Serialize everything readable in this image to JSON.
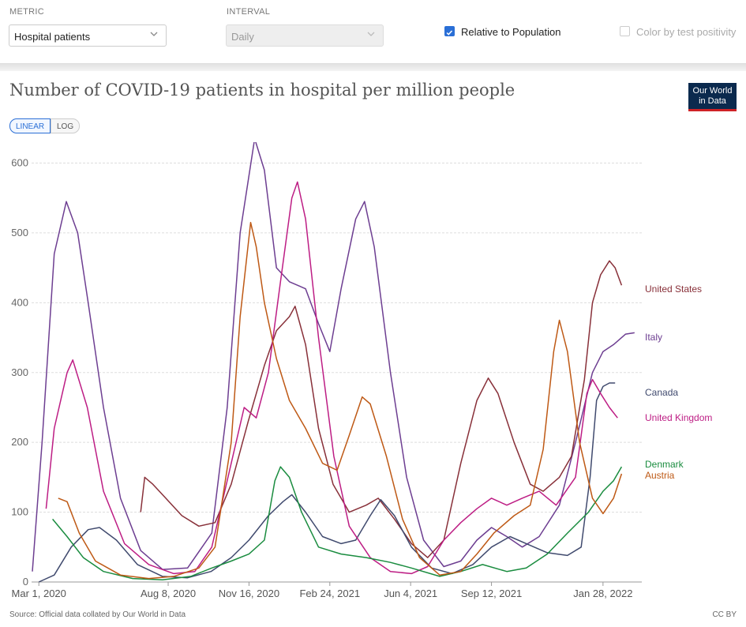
{
  "controls": {
    "metric_label": "METRIC",
    "metric_value": "Hospital patients",
    "interval_label": "INTERVAL",
    "interval_value": "Daily",
    "relative_label": "Relative to Population",
    "relative_checked": true,
    "color_label": "Color by test positivity",
    "color_checked": false
  },
  "header": {
    "title": "Number of COVID-19 patients in hospital per million people",
    "logo_line1": "Our World",
    "logo_line2": "in Data",
    "scale_linear": "LINEAR",
    "scale_log": "LOG"
  },
  "footer": {
    "source": "Source: Official data collated by Our World in Data",
    "license": "CC BY"
  },
  "chart_data": {
    "type": "line",
    "title": "Number of COVID-19 patients in hospital per million people",
    "xlabel": "",
    "ylabel": "",
    "xlim": [
      "2020-02-21",
      "2022-03-17"
    ],
    "ylim": [
      0,
      630
    ],
    "yticks": [
      0,
      100,
      200,
      300,
      400,
      500,
      600
    ],
    "xticks": [
      "2020-03-01",
      "2020-08-08",
      "2020-11-16",
      "2021-02-24",
      "2021-06-04",
      "2021-09-12",
      "2022-01-28"
    ],
    "xtick_labels": [
      "Mar 1, 2020",
      "Aug 8, 2020",
      "Nov 16, 2020",
      "Feb 24, 2021",
      "Jun 4, 2021",
      "Sep 12, 2021",
      "Jan 28, 2022"
    ],
    "grid": true,
    "legend": "end-of-line labels",
    "series": [
      {
        "name": "Italy",
        "color": "#6d3e91",
        "points": [
          [
            "2020-02-22",
            15
          ],
          [
            "2020-03-05",
            200
          ],
          [
            "2020-03-20",
            470
          ],
          [
            "2020-04-04",
            545
          ],
          [
            "2020-04-18",
            500
          ],
          [
            "2020-05-01",
            400
          ],
          [
            "2020-05-20",
            250
          ],
          [
            "2020-06-10",
            120
          ],
          [
            "2020-07-05",
            45
          ],
          [
            "2020-08-01",
            18
          ],
          [
            "2020-09-01",
            20
          ],
          [
            "2020-10-01",
            70
          ],
          [
            "2020-10-20",
            250
          ],
          [
            "2020-11-05",
            500
          ],
          [
            "2020-11-23",
            635
          ],
          [
            "2020-12-05",
            590
          ],
          [
            "2020-12-20",
            450
          ],
          [
            "2021-01-05",
            430
          ],
          [
            "2021-01-25",
            420
          ],
          [
            "2021-02-10",
            370
          ],
          [
            "2021-02-24",
            330
          ],
          [
            "2021-03-10",
            420
          ],
          [
            "2021-03-28",
            520
          ],
          [
            "2021-04-08",
            545
          ],
          [
            "2021-04-20",
            480
          ],
          [
            "2021-05-10",
            300
          ],
          [
            "2021-05-30",
            150
          ],
          [
            "2021-06-20",
            60
          ],
          [
            "2021-07-15",
            22
          ],
          [
            "2021-08-05",
            30
          ],
          [
            "2021-08-25",
            60
          ],
          [
            "2021-09-12",
            78
          ],
          [
            "2021-10-01",
            65
          ],
          [
            "2021-10-20",
            50
          ],
          [
            "2021-11-10",
            65
          ],
          [
            "2021-12-05",
            110
          ],
          [
            "2021-12-25",
            200
          ],
          [
            "2022-01-15",
            300
          ],
          [
            "2022-01-28",
            330
          ],
          [
            "2022-02-10",
            340
          ],
          [
            "2022-02-25",
            355
          ],
          [
            "2022-03-08",
            357
          ]
        ]
      },
      {
        "name": "United States",
        "color": "#883039",
        "points": [
          [
            "2020-07-05",
            100
          ],
          [
            "2020-07-10",
            150
          ],
          [
            "2020-07-20",
            140
          ],
          [
            "2020-08-05",
            120
          ],
          [
            "2020-08-25",
            95
          ],
          [
            "2020-09-15",
            80
          ],
          [
            "2020-10-05",
            85
          ],
          [
            "2020-10-25",
            140
          ],
          [
            "2020-11-15",
            230
          ],
          [
            "2020-12-05",
            310
          ],
          [
            "2020-12-20",
            360
          ],
          [
            "2021-01-05",
            380
          ],
          [
            "2021-01-12",
            395
          ],
          [
            "2021-01-25",
            340
          ],
          [
            "2021-02-10",
            220
          ],
          [
            "2021-02-28",
            140
          ],
          [
            "2021-03-20",
            100
          ],
          [
            "2021-04-10",
            110
          ],
          [
            "2021-04-25",
            120
          ],
          [
            "2021-05-15",
            90
          ],
          [
            "2021-06-05",
            55
          ],
          [
            "2021-06-25",
            35
          ],
          [
            "2021-07-15",
            60
          ],
          [
            "2021-08-05",
            170
          ],
          [
            "2021-08-25",
            260
          ],
          [
            "2021-09-08",
            292
          ],
          [
            "2021-09-20",
            270
          ],
          [
            "2021-10-10",
            200
          ],
          [
            "2021-10-30",
            140
          ],
          [
            "2021-11-15",
            130
          ],
          [
            "2021-12-05",
            150
          ],
          [
            "2021-12-20",
            180
          ],
          [
            "2022-01-05",
            290
          ],
          [
            "2022-01-15",
            400
          ],
          [
            "2022-01-25",
            440
          ],
          [
            "2022-02-05",
            460
          ],
          [
            "2022-02-12",
            450
          ],
          [
            "2022-02-20",
            425
          ]
        ]
      },
      {
        "name": "Canada",
        "color": "#404a6e",
        "points": [
          [
            "2020-03-01",
            0
          ],
          [
            "2020-03-20",
            10
          ],
          [
            "2020-04-10",
            50
          ],
          [
            "2020-05-01",
            75
          ],
          [
            "2020-05-15",
            78
          ],
          [
            "2020-06-05",
            60
          ],
          [
            "2020-07-01",
            25
          ],
          [
            "2020-08-01",
            8
          ],
          [
            "2020-09-01",
            6
          ],
          [
            "2020-09-30",
            15
          ],
          [
            "2020-10-25",
            35
          ],
          [
            "2020-11-16",
            60
          ],
          [
            "2020-12-10",
            95
          ],
          [
            "2020-12-28",
            115
          ],
          [
            "2021-01-08",
            125
          ],
          [
            "2021-01-25",
            100
          ],
          [
            "2021-02-15",
            65
          ],
          [
            "2021-03-10",
            55
          ],
          [
            "2021-03-28",
            60
          ],
          [
            "2021-04-15",
            95
          ],
          [
            "2021-04-28",
            118
          ],
          [
            "2021-05-15",
            95
          ],
          [
            "2021-06-05",
            50
          ],
          [
            "2021-06-30",
            20
          ],
          [
            "2021-07-25",
            12
          ],
          [
            "2021-08-20",
            25
          ],
          [
            "2021-09-12",
            50
          ],
          [
            "2021-10-05",
            65
          ],
          [
            "2021-10-25",
            55
          ],
          [
            "2021-11-20",
            42
          ],
          [
            "2021-12-15",
            38
          ],
          [
            "2022-01-01",
            50
          ],
          [
            "2022-01-12",
            150
          ],
          [
            "2022-01-20",
            260
          ],
          [
            "2022-01-28",
            280
          ],
          [
            "2022-02-05",
            285
          ],
          [
            "2022-02-12",
            285
          ]
        ]
      },
      {
        "name": "United Kingdom",
        "color": "#bd1d84",
        "points": [
          [
            "2020-03-10",
            105
          ],
          [
            "2020-03-20",
            220
          ],
          [
            "2020-04-05",
            300
          ],
          [
            "2020-04-12",
            318
          ],
          [
            "2020-04-30",
            250
          ],
          [
            "2020-05-20",
            130
          ],
          [
            "2020-06-15",
            55
          ],
          [
            "2020-07-15",
            25
          ],
          [
            "2020-08-15",
            12
          ],
          [
            "2020-09-10",
            15
          ],
          [
            "2020-10-01",
            50
          ],
          [
            "2020-10-25",
            170
          ],
          [
            "2020-11-10",
            250
          ],
          [
            "2020-11-25",
            235
          ],
          [
            "2020-12-10",
            300
          ],
          [
            "2020-12-25",
            430
          ],
          [
            "2021-01-08",
            550
          ],
          [
            "2021-01-15",
            573
          ],
          [
            "2021-01-25",
            520
          ],
          [
            "2021-02-10",
            350
          ],
          [
            "2021-03-01",
            180
          ],
          [
            "2021-03-20",
            80
          ],
          [
            "2021-04-15",
            35
          ],
          [
            "2021-05-10",
            15
          ],
          [
            "2021-06-05",
            12
          ],
          [
            "2021-06-25",
            22
          ],
          [
            "2021-07-15",
            60
          ],
          [
            "2021-08-05",
            85
          ],
          [
            "2021-08-25",
            105
          ],
          [
            "2021-09-12",
            120
          ],
          [
            "2021-10-01",
            110
          ],
          [
            "2021-10-20",
            120
          ],
          [
            "2021-11-10",
            130
          ],
          [
            "2021-12-01",
            110
          ],
          [
            "2021-12-25",
            150
          ],
          [
            "2022-01-08",
            270
          ],
          [
            "2022-01-15",
            290
          ],
          [
            "2022-01-25",
            270
          ],
          [
            "2022-02-05",
            250
          ],
          [
            "2022-02-15",
            235
          ]
        ]
      },
      {
        "name": "Denmark",
        "color": "#1a8c3f",
        "points": [
          [
            "2020-03-18",
            90
          ],
          [
            "2020-04-05",
            65
          ],
          [
            "2020-04-25",
            35
          ],
          [
            "2020-05-20",
            15
          ],
          [
            "2020-06-25",
            5
          ],
          [
            "2020-08-01",
            3
          ],
          [
            "2020-09-05",
            8
          ],
          [
            "2020-10-01",
            20
          ],
          [
            "2020-10-25",
            30
          ],
          [
            "2020-11-16",
            40
          ],
          [
            "2020-12-05",
            60
          ],
          [
            "2020-12-18",
            145
          ],
          [
            "2020-12-25",
            165
          ],
          [
            "2021-01-05",
            150
          ],
          [
            "2021-01-20",
            100
          ],
          [
            "2021-02-10",
            50
          ],
          [
            "2021-03-10",
            40
          ],
          [
            "2021-04-10",
            35
          ],
          [
            "2021-05-10",
            28
          ],
          [
            "2021-06-05",
            20
          ],
          [
            "2021-07-10",
            8
          ],
          [
            "2021-08-05",
            15
          ],
          [
            "2021-09-01",
            25
          ],
          [
            "2021-10-01",
            15
          ],
          [
            "2021-10-25",
            20
          ],
          [
            "2021-11-20",
            40
          ],
          [
            "2021-12-15",
            70
          ],
          [
            "2022-01-10",
            100
          ],
          [
            "2022-01-28",
            130
          ],
          [
            "2022-02-10",
            145
          ],
          [
            "2022-02-20",
            165
          ]
        ]
      },
      {
        "name": "Austria",
        "color": "#be5915",
        "points": [
          [
            "2020-03-25",
            120
          ],
          [
            "2020-04-05",
            115
          ],
          [
            "2020-04-20",
            70
          ],
          [
            "2020-05-10",
            30
          ],
          [
            "2020-06-10",
            10
          ],
          [
            "2020-07-15",
            5
          ],
          [
            "2020-08-15",
            8
          ],
          [
            "2020-09-15",
            20
          ],
          [
            "2020-10-05",
            50
          ],
          [
            "2020-10-25",
            200
          ],
          [
            "2020-11-05",
            380
          ],
          [
            "2020-11-18",
            515
          ],
          [
            "2020-11-25",
            480
          ],
          [
            "2020-12-05",
            400
          ],
          [
            "2020-12-20",
            320
          ],
          [
            "2021-01-05",
            260
          ],
          [
            "2021-01-25",
            220
          ],
          [
            "2021-02-15",
            170
          ],
          [
            "2021-03-05",
            160
          ],
          [
            "2021-03-20",
            210
          ],
          [
            "2021-04-05",
            265
          ],
          [
            "2021-04-15",
            255
          ],
          [
            "2021-05-05",
            180
          ],
          [
            "2021-05-25",
            90
          ],
          [
            "2021-06-15",
            35
          ],
          [
            "2021-07-10",
            10
          ],
          [
            "2021-08-05",
            15
          ],
          [
            "2021-08-25",
            40
          ],
          [
            "2021-09-15",
            70
          ],
          [
            "2021-10-10",
            95
          ],
          [
            "2021-10-30",
            110
          ],
          [
            "2021-11-15",
            190
          ],
          [
            "2021-11-28",
            330
          ],
          [
            "2021-12-05",
            375
          ],
          [
            "2021-12-15",
            330
          ],
          [
            "2021-12-30",
            200
          ],
          [
            "2022-01-15",
            120
          ],
          [
            "2022-01-28",
            98
          ],
          [
            "2022-02-10",
            120
          ],
          [
            "2022-02-20",
            155
          ]
        ]
      }
    ]
  }
}
